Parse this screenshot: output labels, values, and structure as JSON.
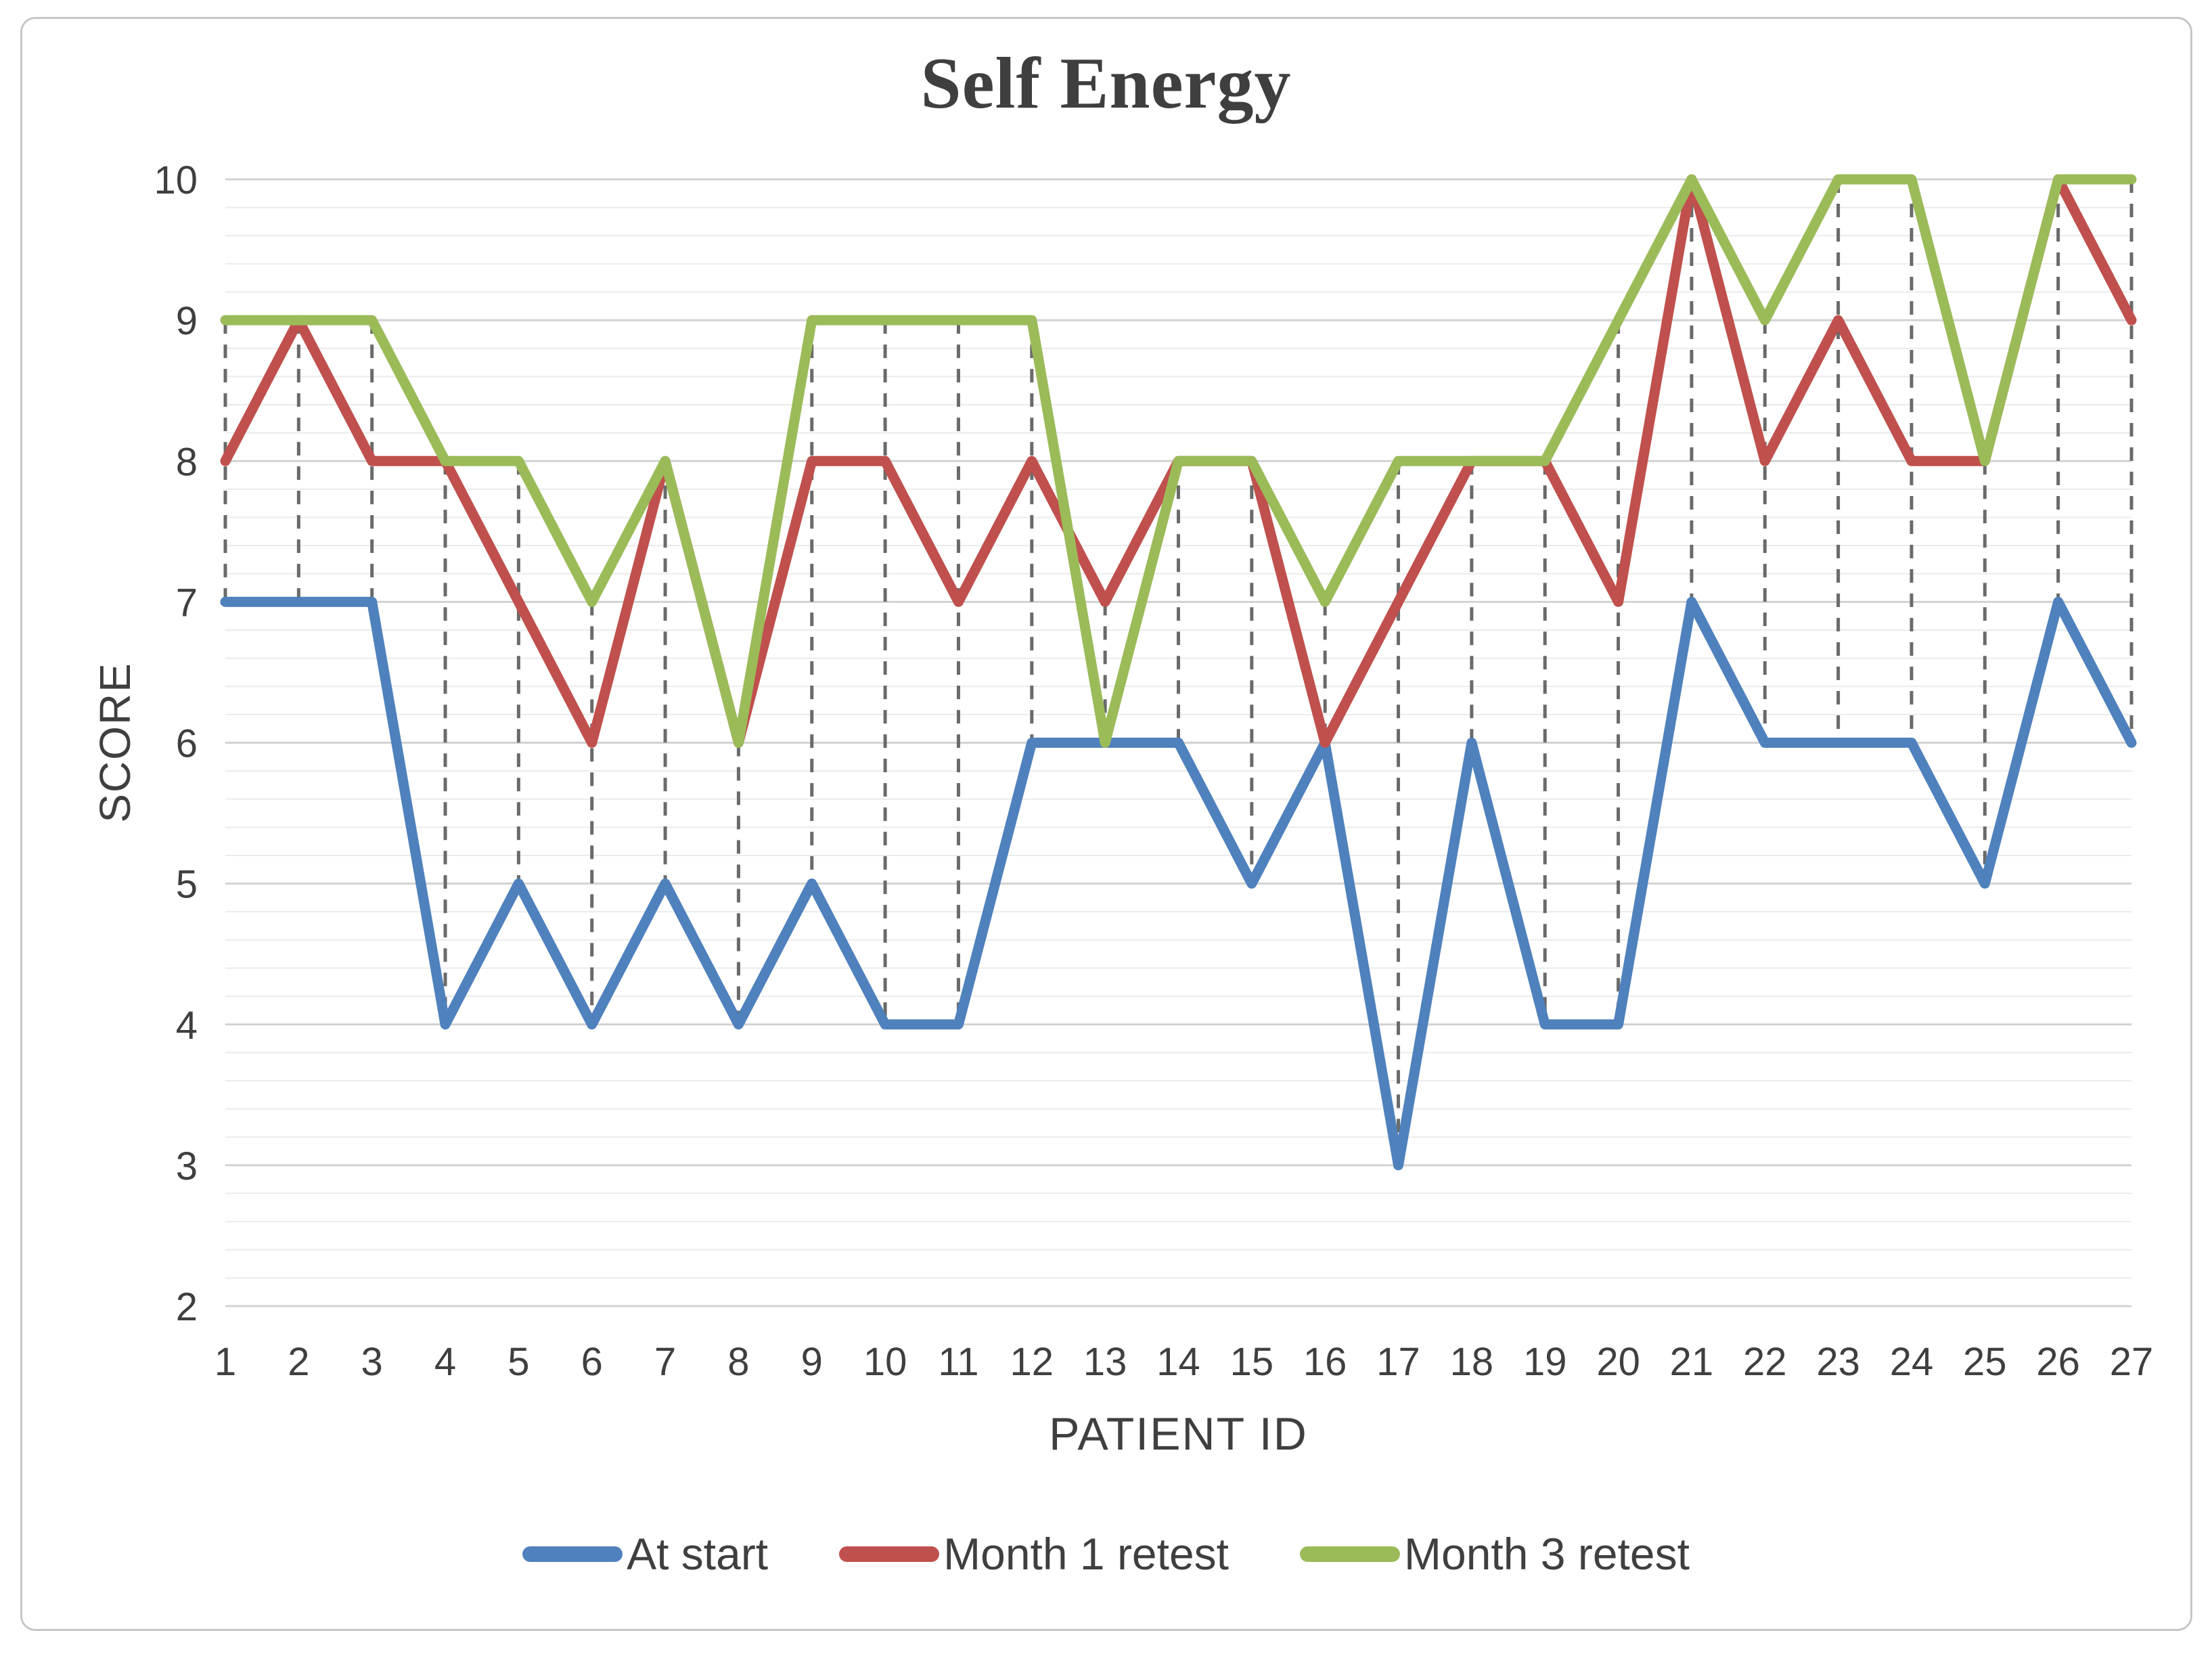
{
  "chart_data": {
    "type": "line",
    "title": "Self Energy",
    "xlabel": "PATIENT ID",
    "ylabel": "SCORE",
    "categories": [
      1,
      2,
      3,
      4,
      5,
      6,
      7,
      8,
      9,
      10,
      11,
      12,
      13,
      14,
      15,
      16,
      17,
      18,
      19,
      20,
      21,
      22,
      23,
      24,
      25,
      26,
      27
    ],
    "ylim": [
      2,
      10
    ],
    "yticks": [
      2,
      3,
      4,
      5,
      6,
      7,
      8,
      9,
      10
    ],
    "grid": {
      "major": true,
      "minor_step": 0.2
    },
    "high_low_lines": {
      "style": "dashed",
      "color": "#6a6a6a"
    },
    "legend_position": "bottom",
    "text_color": "#3f3f3f",
    "series": [
      {
        "name": "At start",
        "color": "#4f81bd",
        "values": [
          7,
          7,
          7,
          4,
          5,
          4,
          5,
          4,
          5,
          4,
          4,
          6,
          6,
          6,
          5,
          6,
          3,
          6,
          4,
          4,
          7,
          6,
          6,
          6,
          5,
          7,
          6
        ]
      },
      {
        "name": "Month 1 retest",
        "color": "#c0504d",
        "values": [
          8,
          9,
          8,
          8,
          7,
          6,
          8,
          6,
          8,
          8,
          7,
          8,
          7,
          8,
          8,
          6,
          7,
          8,
          8,
          7,
          10,
          8,
          9,
          8,
          8,
          10,
          9
        ]
      },
      {
        "name": "Month 3 retest",
        "color": "#9bbb59",
        "values": [
          9,
          9,
          9,
          8,
          8,
          7,
          8,
          6,
          9,
          9,
          9,
          9,
          6,
          8,
          8,
          7,
          8,
          8,
          8,
          9,
          10,
          9,
          10,
          10,
          8,
          10,
          10
        ]
      }
    ],
    "grid_major_color": "#d2d2d2",
    "grid_minor_color": "#ebebeb",
    "figure_border_color": "#c6c6c6",
    "background_color": "#ffffff"
  }
}
